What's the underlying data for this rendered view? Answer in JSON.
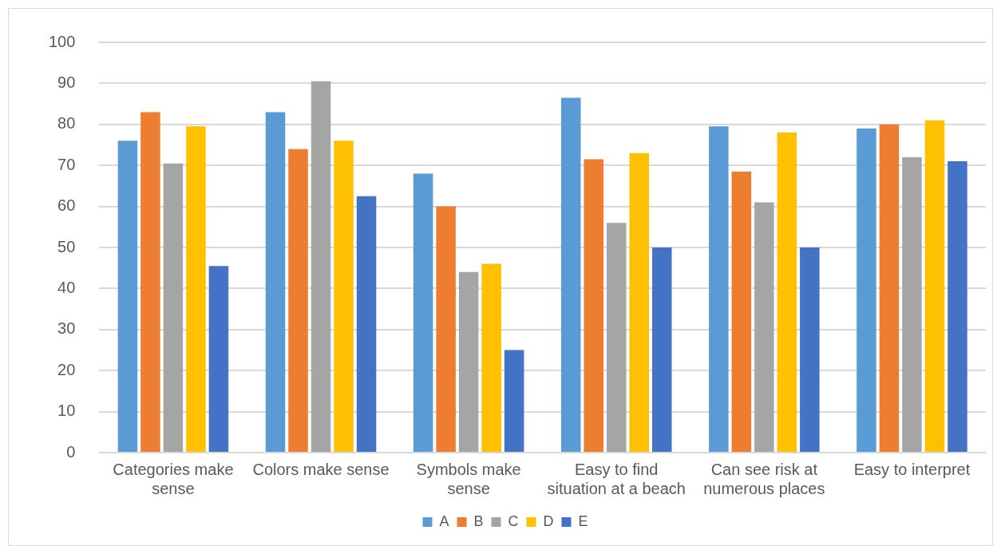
{
  "chart_data": {
    "type": "bar",
    "categories": [
      "Categories make sense",
      "Colors make sense",
      "Symbols make sense",
      "Easy to find situation at a beach",
      "Can see risk at numerous places",
      "Easy to interpret"
    ],
    "series": [
      {
        "name": "A",
        "color": "#5b9bd5",
        "values": [
          76,
          83,
          68,
          86.5,
          79.5,
          79
        ]
      },
      {
        "name": "B",
        "color": "#ed7d31",
        "values": [
          83,
          74,
          60,
          71.5,
          68.5,
          80
        ]
      },
      {
        "name": "C",
        "color": "#a5a5a5",
        "values": [
          70.5,
          90.5,
          44,
          56,
          61,
          72
        ]
      },
      {
        "name": "D",
        "color": "#ffc000",
        "values": [
          79.5,
          76,
          46,
          73,
          78,
          81
        ]
      },
      {
        "name": "E",
        "color": "#4472c4",
        "values": [
          45.5,
          62.5,
          25,
          50,
          50,
          71
        ]
      }
    ],
    "ylim": [
      0,
      100
    ],
    "yticks": [
      0,
      10,
      20,
      30,
      40,
      50,
      60,
      70,
      80,
      90,
      100
    ],
    "grid": "y",
    "legend": "bottom"
  }
}
